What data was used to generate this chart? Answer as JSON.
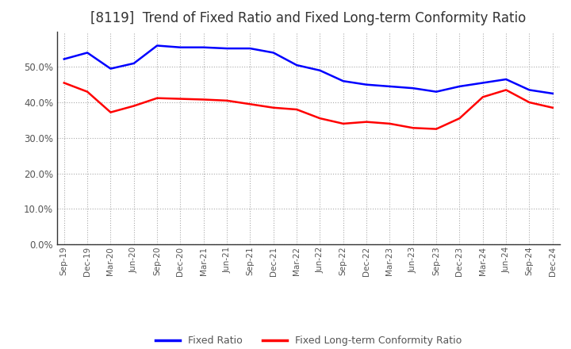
{
  "title": "[8119]  Trend of Fixed Ratio and Fixed Long-term Conformity Ratio",
  "x_labels": [
    "Sep-19",
    "Dec-19",
    "Mar-20",
    "Jun-20",
    "Sep-20",
    "Dec-20",
    "Mar-21",
    "Jun-21",
    "Sep-21",
    "Dec-21",
    "Mar-22",
    "Jun-22",
    "Sep-22",
    "Dec-22",
    "Mar-23",
    "Jun-23",
    "Sep-23",
    "Dec-23",
    "Mar-24",
    "Jun-24",
    "Sep-24",
    "Dec-24"
  ],
  "fixed_ratio": [
    0.522,
    0.54,
    0.495,
    0.51,
    0.56,
    0.555,
    0.555,
    0.552,
    0.552,
    0.54,
    0.505,
    0.49,
    0.46,
    0.45,
    0.445,
    0.44,
    0.43,
    0.445,
    0.455,
    0.465,
    0.435,
    0.425
  ],
  "fixed_lt_ratio": [
    0.455,
    0.43,
    0.372,
    0.39,
    0.412,
    0.41,
    0.408,
    0.405,
    0.395,
    0.385,
    0.38,
    0.355,
    0.34,
    0.345,
    0.34,
    0.328,
    0.325,
    0.355,
    0.415,
    0.435,
    0.4,
    0.385
  ],
  "fixed_ratio_color": "#0000FF",
  "fixed_lt_ratio_color": "#FF0000",
  "ylim": [
    0.0,
    0.6
  ],
  "yticks": [
    0.0,
    0.1,
    0.2,
    0.3,
    0.4,
    0.5
  ],
  "background_color": "#FFFFFF",
  "grid_color": "#AAAAAA",
  "title_fontsize": 12,
  "axis_color": "#333333",
  "tick_label_color": "#555555",
  "legend_labels": [
    "Fixed Ratio",
    "Fixed Long-term Conformity Ratio"
  ]
}
